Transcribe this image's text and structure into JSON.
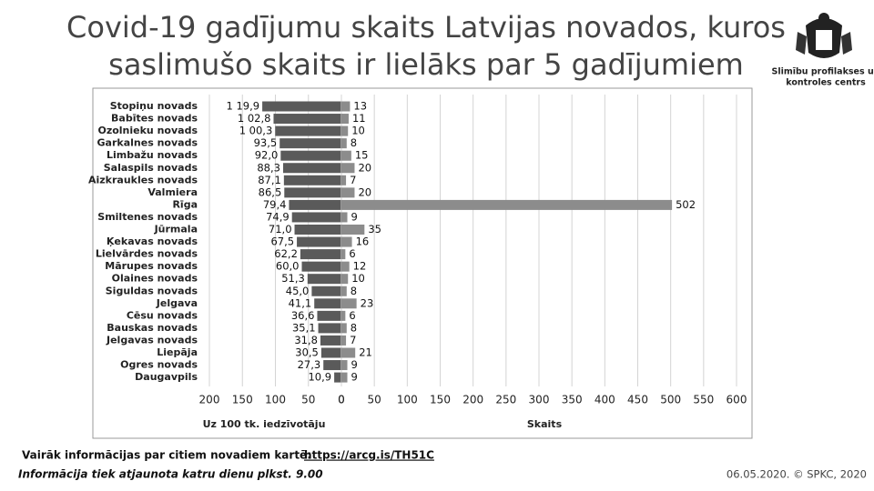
{
  "header": {
    "title": [
      "Covid-19 gadījumu skaits Latvijas novados, kuros",
      "saslimušo skaits ir lielāks par 5 gadījumiem"
    ],
    "organization": [
      "Slimību profilakses un",
      "kontroles centrs"
    ]
  },
  "chart_data": {
    "type": "butterfly",
    "categories": [
      "Stopiņu novads",
      "Babītes novads",
      "Ozolnieku novads",
      "Garkalnes novads",
      "Limbažu novads",
      "Salaspils novads",
      "Aizkraukles novads",
      "Valmiera",
      "Rīga",
      "Smiltenes novads",
      "Jūrmala",
      "Ķekavas novads",
      "Lielvārdes novads",
      "Mārupes novads",
      "Olaines novads",
      "Siguldas novads",
      "Jelgava",
      "Cēsu novads",
      "Bauskas novads",
      "Jelgavas novads",
      "Liepāja",
      "Ogres novads",
      "Daugavpils"
    ],
    "series": [
      {
        "name": "Uz 100 tk. iedzīvotāju",
        "side": "left",
        "color": "#5a5a5a",
        "values": [
          119.9,
          102.8,
          100.3,
          93.5,
          92.0,
          88.3,
          87.1,
          86.5,
          79.4,
          74.9,
          71.0,
          67.5,
          62.2,
          60.0,
          51.3,
          45.0,
          41.1,
          36.6,
          35.1,
          31.8,
          30.5,
          27.3,
          10.9
        ],
        "value_labels": [
          "1 19,9",
          "1 02,8",
          "1 00,3",
          "93,5",
          "92,0",
          "88,3",
          "87,1",
          "86,5",
          "79,4",
          "74,9",
          "71,0",
          "67,5",
          "62,2",
          "60,0",
          "51,3",
          "45,0",
          "41,1",
          "36,6",
          "35,1",
          "31,8",
          "30,5",
          "27,3",
          "10,9"
        ],
        "xlim": [
          0,
          200
        ],
        "xticks": [
          200,
          150,
          100,
          50,
          0
        ]
      },
      {
        "name": "Skaits",
        "side": "right",
        "color": "#8c8c8c",
        "values": [
          13,
          11,
          10,
          8,
          15,
          20,
          7,
          20,
          502,
          9,
          35,
          16,
          6,
          12,
          10,
          8,
          23,
          6,
          8,
          7,
          21,
          9,
          9
        ],
        "xlim": [
          0,
          600
        ],
        "xticks": [
          0,
          50,
          100,
          150,
          200,
          250,
          300,
          350,
          400,
          450,
          500,
          550,
          600
        ]
      }
    ],
    "grid": true
  },
  "footer": {
    "map_text": "Vairāk informācijas par citiem novadiem kartē:",
    "map_link": "https://arcg.is/TH51C",
    "update_note": "Informācija tiek atjaunota katru dienu plkst. 9.00",
    "credit": "06.05.2020. © SPKC, 2020"
  }
}
